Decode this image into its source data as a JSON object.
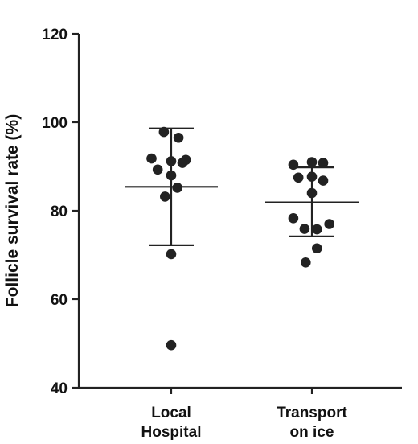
{
  "chart_data": {
    "type": "scatter",
    "title": "",
    "xlabel": "",
    "ylabel": "Follicle survival rate (%)",
    "ylim": [
      40,
      120
    ],
    "yticks": [
      40,
      60,
      80,
      100,
      120
    ],
    "grid": false,
    "categories": [
      [
        "Local",
        "Hospital"
      ],
      [
        "Transport",
        "on ice"
      ]
    ],
    "point_color": "#222222",
    "series": [
      {
        "points": [
          {
            "x": -0.13,
            "y": 97.8
          },
          {
            "x": 0.13,
            "y": 96.5
          },
          {
            "x": -0.35,
            "y": 91.8
          },
          {
            "x": 0.0,
            "y": 91.2
          },
          {
            "x": 0.26,
            "y": 91.5
          },
          {
            "x": -0.24,
            "y": 89.3
          },
          {
            "x": 0.2,
            "y": 90.8
          },
          {
            "x": 0.0,
            "y": 88.0
          },
          {
            "x": 0.11,
            "y": 85.2
          },
          {
            "x": -0.11,
            "y": 83.2
          },
          {
            "x": 0.0,
            "y": 70.2
          },
          {
            "x": 0.0,
            "y": 49.6
          }
        ],
        "mean": 85.4,
        "sd_low": 72.2,
        "sd_high": 98.6
      },
      {
        "points": [
          {
            "x": -0.33,
            "y": 90.4
          },
          {
            "x": 0.0,
            "y": 91.0
          },
          {
            "x": 0.2,
            "y": 90.8
          },
          {
            "x": -0.24,
            "y": 87.5
          },
          {
            "x": 0.0,
            "y": 87.7
          },
          {
            "x": 0.2,
            "y": 86.8
          },
          {
            "x": 0.0,
            "y": 84.0
          },
          {
            "x": -0.33,
            "y": 78.3
          },
          {
            "x": 0.31,
            "y": 77.0
          },
          {
            "x": -0.13,
            "y": 75.9
          },
          {
            "x": 0.09,
            "y": 75.8
          },
          {
            "x": 0.09,
            "y": 71.5
          },
          {
            "x": -0.11,
            "y": 68.3
          }
        ],
        "mean": 81.9,
        "sd_low": 74.2,
        "sd_high": 89.8
      }
    ]
  }
}
